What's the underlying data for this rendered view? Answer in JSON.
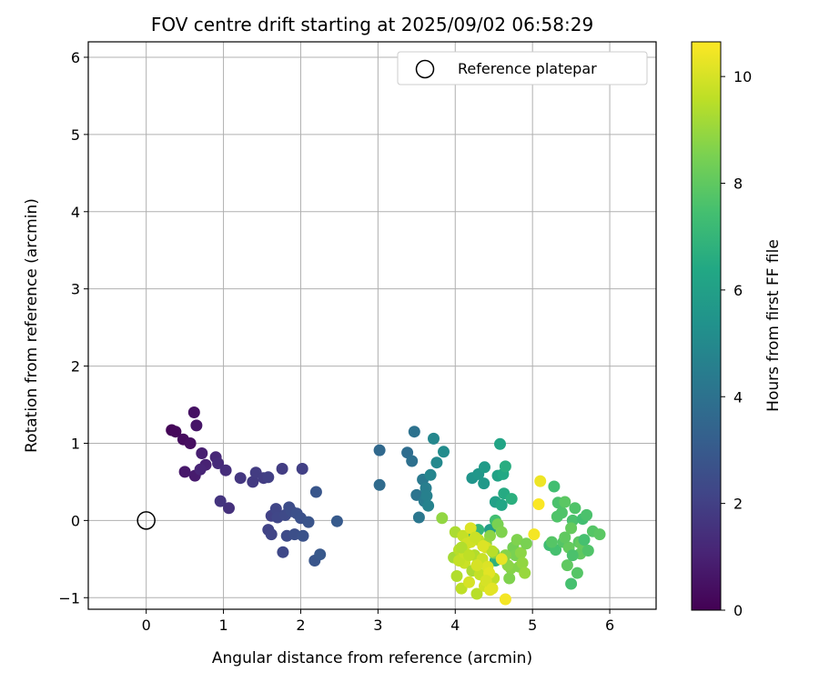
{
  "chart_data": {
    "type": "scatter",
    "title": "FOV centre drift starting at 2025/09/02 06:58:29",
    "xlabel": "Angular distance from reference (arcmin)",
    "ylabel": "Rotation from reference (arcmin)",
    "xlim": [
      -0.75,
      6.6
    ],
    "ylim": [
      -1.15,
      6.2
    ],
    "xticks": [
      0,
      1,
      2,
      3,
      4,
      5,
      6
    ],
    "yticks": [
      -1,
      0,
      1,
      2,
      3,
      4,
      5,
      6
    ],
    "grid": true,
    "legend": {
      "position": "top-right",
      "entries": [
        "Reference platepar"
      ]
    },
    "reference_point": {
      "name": "Reference platepar",
      "x": 0,
      "y": 0
    },
    "colorbar": {
      "label": "Hours from first FF file",
      "colormap": "viridis",
      "range": [
        0,
        10.65
      ],
      "ticks": [
        0,
        2,
        4,
        6,
        8,
        10
      ]
    },
    "series": [
      {
        "x": [
          0.33,
          0.38,
          0.48,
          0.57,
          0.62,
          0.65,
          0.5,
          0.63,
          0.72,
          0.77,
          0.7,
          0.9,
          0.93,
          1.03,
          1.07,
          0.96
        ],
        "y": [
          1.17,
          1.15,
          1.05,
          1.0,
          1.4,
          1.23,
          0.63,
          0.58,
          0.87,
          0.72,
          0.66,
          0.82,
          0.74,
          0.65,
          0.16,
          0.25
        ],
        "c": [
          0.1,
          0.2,
          0.3,
          0.4,
          0.5,
          0.6,
          0.7,
          0.8,
          0.9,
          1.0,
          1.1,
          1.2,
          1.3,
          1.4,
          1.5,
          1.6
        ]
      },
      {
        "x": [
          1.22,
          1.38,
          1.42,
          1.52,
          1.58,
          1.62,
          1.58,
          1.62,
          1.68,
          1.7,
          1.77,
          1.8,
          1.82,
          1.85,
          1.88,
          1.92,
          1.95,
          2.0,
          2.03,
          2.1,
          2.18,
          2.2,
          2.25,
          2.47,
          1.76,
          2.02
        ],
        "y": [
          0.55,
          0.5,
          0.62,
          0.55,
          0.56,
          0.06,
          -0.12,
          -0.18,
          0.15,
          0.04,
          -0.41,
          0.07,
          -0.2,
          0.17,
          0.12,
          -0.18,
          0.09,
          0.03,
          -0.2,
          -0.02,
          -0.52,
          0.37,
          -0.44,
          -0.01,
          0.67,
          0.67
        ],
        "c": [
          1.7,
          1.8,
          1.85,
          1.9,
          2.0,
          2.05,
          2.1,
          2.15,
          2.2,
          2.25,
          2.3,
          2.35,
          2.4,
          2.45,
          2.5,
          2.55,
          2.6,
          2.65,
          2.7,
          2.75,
          2.8,
          2.85,
          2.9,
          3.0,
          1.9,
          2.0
        ]
      },
      {
        "x": [
          3.02,
          3.02,
          3.38,
          3.44,
          3.47,
          3.5,
          3.53,
          3.58,
          3.6,
          3.62,
          3.63,
          3.65,
          3.68,
          3.72,
          3.76,
          3.85
        ],
        "y": [
          0.91,
          0.46,
          0.88,
          0.77,
          1.15,
          0.33,
          0.04,
          0.53,
          0.25,
          0.42,
          0.32,
          0.19,
          0.59,
          1.06,
          0.75,
          0.89
        ],
        "c": [
          3.6,
          3.7,
          3.8,
          3.9,
          4.0,
          4.1,
          4.2,
          4.3,
          4.4,
          4.5,
          4.6,
          4.7,
          4.8,
          4.9,
          5.0,
          5.1
        ]
      },
      {
        "x": [
          4.22,
          4.3,
          4.37,
          4.38,
          4.45,
          4.52,
          4.55,
          4.58,
          4.6,
          4.62,
          4.63,
          4.65,
          4.73,
          4.52,
          4.18,
          4.3
        ],
        "y": [
          0.55,
          0.6,
          0.48,
          0.69,
          -0.12,
          0.24,
          0.58,
          0.99,
          0.2,
          0.6,
          0.35,
          0.7,
          0.28,
          -0.52,
          -0.2,
          -0.12
        ],
        "c": [
          5.5,
          5.6,
          5.7,
          5.8,
          5.9,
          6.0,
          6.1,
          6.2,
          6.3,
          6.4,
          6.5,
          6.6,
          6.7,
          6.8,
          6.9,
          7.0
        ]
      },
      {
        "x": [
          5.22,
          5.28,
          5.3,
          5.33,
          5.38,
          5.4,
          5.42,
          5.45,
          5.47,
          5.5,
          5.52,
          5.55,
          5.58,
          5.6,
          5.62,
          5.63,
          5.65,
          5.67,
          5.7,
          5.72,
          5.78,
          5.87,
          5.42,
          5.5,
          5.52,
          5.32,
          5.25,
          4.52
        ],
        "y": [
          -0.32,
          0.44,
          -0.38,
          0.23,
          0.1,
          -0.28,
          0.24,
          -0.58,
          -0.35,
          -0.82,
          0.0,
          0.16,
          -0.68,
          -0.28,
          -0.43,
          -0.3,
          0.02,
          -0.25,
          0.07,
          -0.39,
          -0.14,
          -0.18,
          -0.22,
          -0.1,
          -0.45,
          0.05,
          -0.28,
          0.0
        ],
        "c": [
          7.3,
          7.4,
          7.5,
          7.6,
          7.7,
          7.8,
          7.9,
          8.0,
          8.1,
          7.5,
          7.6,
          7.7,
          7.8,
          7.9,
          8.0,
          8.1,
          7.4,
          7.5,
          7.6,
          7.7,
          7.8,
          7.9,
          8.0,
          8.1,
          7.6,
          7.7,
          7.8,
          7.4
        ]
      },
      {
        "x": [
          4.75,
          4.78,
          4.8,
          4.83,
          4.85,
          4.87,
          4.9,
          4.92,
          4.7,
          4.72,
          4.45,
          4.4,
          4.35,
          4.5,
          4.27,
          4.68,
          3.83,
          4.55,
          4.6,
          4.65
        ],
        "y": [
          -0.35,
          -0.45,
          -0.25,
          -0.6,
          -0.42,
          -0.55,
          -0.68,
          -0.3,
          -0.75,
          -0.62,
          -0.2,
          -0.3,
          -0.5,
          -0.42,
          -0.62,
          -0.58,
          0.03,
          -0.05,
          -0.15,
          -0.45
        ],
        "c": [
          8.4,
          8.5,
          8.6,
          8.7,
          8.8,
          8.9,
          9.0,
          8.5,
          8.6,
          8.7,
          8.8,
          8.9,
          9.0,
          8.6,
          8.7,
          8.8,
          8.9,
          8.5,
          8.6,
          8.7
        ]
      },
      {
        "x": [
          3.98,
          4.0,
          4.02,
          4.05,
          4.08,
          4.1,
          4.12,
          4.15,
          4.18,
          4.2,
          4.22,
          4.25,
          4.28,
          4.3,
          4.32,
          4.35,
          4.38,
          4.4,
          4.42,
          4.45,
          4.48,
          4.5,
          4.05,
          4.12,
          4.2,
          4.28,
          4.36,
          4.44,
          4.6,
          4.65,
          5.1,
          5.02,
          5.08,
          4.08,
          4.18,
          4.26,
          4.4,
          4.48
        ],
        "y": [
          -0.48,
          -0.15,
          -0.72,
          -0.38,
          -0.88,
          -0.2,
          -0.55,
          -0.3,
          -0.8,
          -0.1,
          -0.65,
          -0.45,
          -0.95,
          -0.25,
          -0.7,
          -0.5,
          -0.85,
          -0.35,
          -0.6,
          -0.9,
          -0.4,
          -0.75,
          -0.52,
          -0.42,
          -0.28,
          -0.58,
          -0.33,
          -0.68,
          -0.5,
          -1.02,
          0.51,
          -0.18,
          0.21,
          -0.35,
          -0.45,
          -0.22,
          -0.78,
          -0.88
        ],
        "c": [
          9.2,
          9.3,
          9.4,
          9.5,
          9.6,
          9.7,
          9.8,
          9.9,
          10.0,
          10.1,
          9.3,
          9.4,
          9.5,
          9.6,
          9.7,
          9.8,
          9.9,
          10.0,
          10.1,
          10.2,
          9.5,
          9.6,
          9.7,
          9.8,
          9.9,
          10.0,
          10.1,
          10.2,
          10.3,
          10.5,
          10.4,
          10.5,
          10.6,
          9.4,
          9.6,
          9.8,
          10.0,
          10.2
        ]
      }
    ]
  }
}
